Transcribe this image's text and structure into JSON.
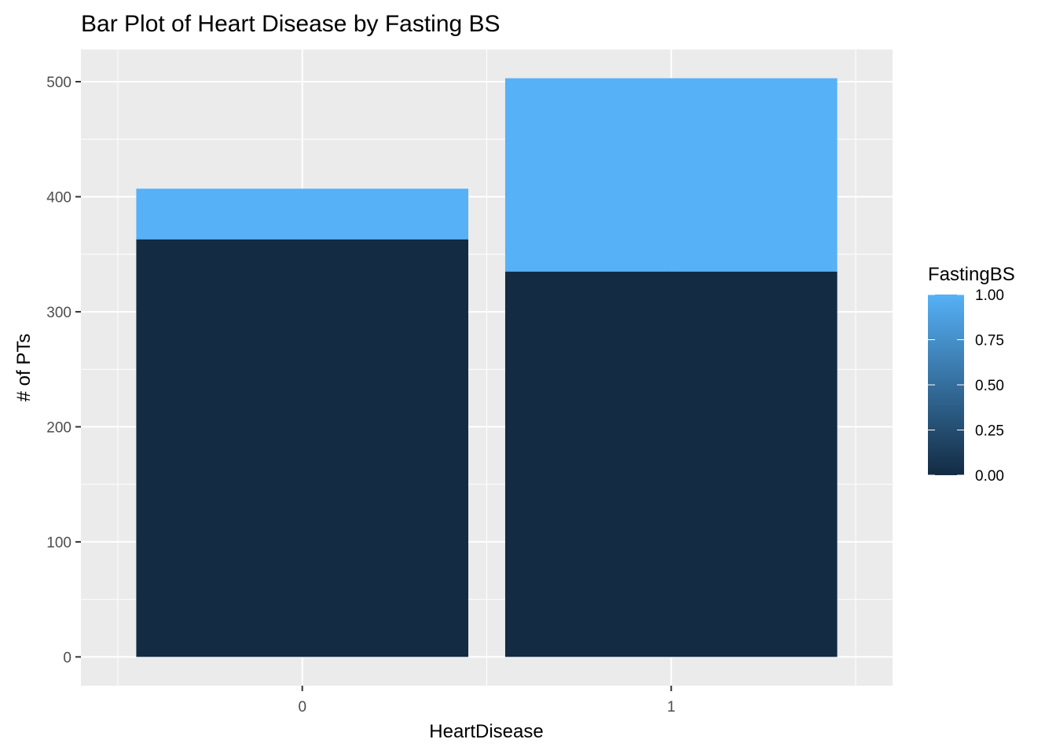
{
  "chart_data": {
    "type": "bar",
    "stacked": true,
    "title": "Bar Plot of Heart Disease by Fasting BS",
    "xlabel": "HeartDisease",
    "ylabel": "# of PTs",
    "categories": [
      "0",
      "1"
    ],
    "series": [
      {
        "fill_value": 0,
        "color": "#132b43",
        "values": [
          363,
          335
        ]
      },
      {
        "fill_value": 1,
        "color": "#56b1f7",
        "values": [
          44,
          168
        ]
      }
    ],
    "ylim": [
      -25,
      528
    ],
    "yticks": [
      0,
      100,
      200,
      300,
      400,
      500
    ],
    "ytick_labels": [
      "0",
      "100",
      "200",
      "300",
      "400",
      "500"
    ],
    "grid": true,
    "legend": {
      "title": "FastingBS",
      "position": "right",
      "type": "colorbar",
      "range": [
        0,
        1
      ],
      "low_color": "#132b43",
      "high_color": "#56b1f7",
      "labels": [
        "1.00",
        "0.75",
        "0.50",
        "0.25",
        "0.00"
      ],
      "label_values": [
        1,
        0.75,
        0.5,
        0.25,
        0
      ]
    }
  }
}
